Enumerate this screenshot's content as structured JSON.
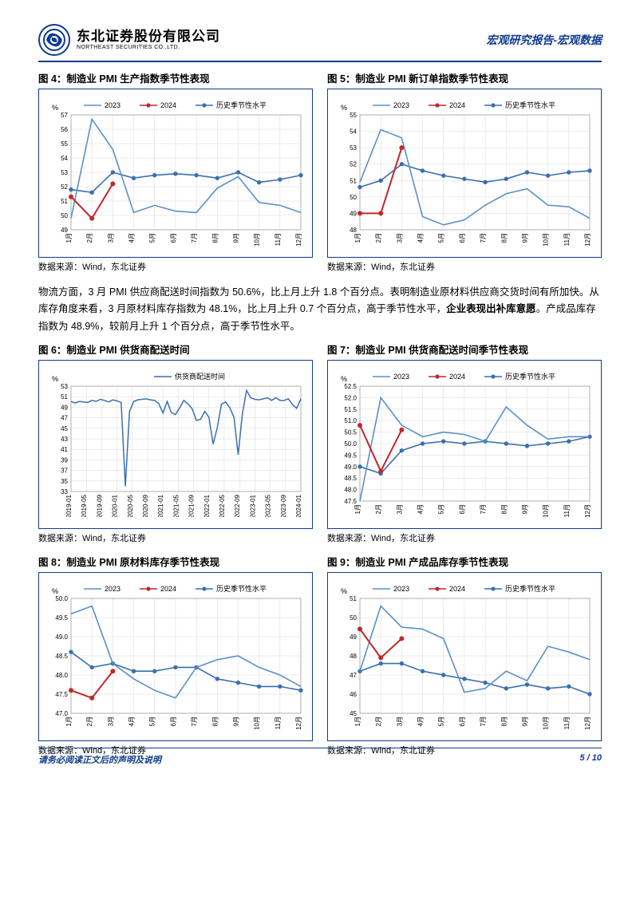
{
  "header": {
    "logo_cn": "东北证券股份有限公司",
    "logo_en": "NORTHEAST SECURITIES CO.,LTD.",
    "right": "宏观研究报告-宏观数据"
  },
  "body_text": "物流方面，3 月 PMI 供应商配送时间指数为 50.6%，比上月上升 1.8 个百分点。表明制造业原材料供应商交货时间有所加快。从库存角度来看，3 月原材料库存指数为 48.1%，比上月上升 0.7 个百分点，高于季节性水平，企业表现出补库意愿。产成品库存指数为 48.9%，较前月上升 1 个百分点，高于季节性水平。",
  "body_bold": "企业表现出补库意愿",
  "footer": {
    "left": "请务必阅读正文后的声明及说明",
    "right": "5 / 10"
  },
  "source_text": "数据来源：Wind，东北证券",
  "months": [
    "1月",
    "2月",
    "3月",
    "4月",
    "5月",
    "6月",
    "7月",
    "8月",
    "9月",
    "10月",
    "11月",
    "12月"
  ],
  "legend_3series": [
    "2023",
    "2024",
    "历史季节性水平"
  ],
  "legend_1series": [
    "供货商配送时间"
  ],
  "colors": {
    "s2023": "#5b8fc9",
    "s2024": "#c1272d",
    "hist": "#3a6fb0",
    "single": "#3a6fb0",
    "grid": "#d8d8d8",
    "axis": "#888888",
    "border": "#0f3b8c"
  },
  "fig4": {
    "title": "图 4：制造业 PMI 生产指数季节性表现",
    "ylabel": "%",
    "ylim": [
      49,
      57
    ],
    "ytick_step": 1,
    "s2023": [
      49.8,
      56.7,
      54.6,
      50.2,
      50.7,
      50.3,
      50.2,
      51.9,
      52.7,
      50.9,
      50.7,
      50.2
    ],
    "s2024": [
      51.3,
      49.8,
      52.2
    ],
    "hist": [
      51.8,
      51.6,
      53.0,
      52.6,
      52.8,
      52.9,
      52.8,
      52.6,
      53.0,
      52.3,
      52.5,
      52.8
    ]
  },
  "fig5": {
    "title": "图 5：制造业 PMI 新订单指数季节性表现",
    "ylabel": "%",
    "ylim": [
      48,
      55
    ],
    "ytick_step": 1,
    "s2023": [
      50.9,
      54.1,
      53.6,
      48.8,
      48.3,
      48.6,
      49.5,
      50.2,
      50.5,
      49.5,
      49.4,
      48.7
    ],
    "s2024": [
      49.0,
      49.0,
      53.0
    ],
    "hist": [
      50.6,
      51.0,
      52.0,
      51.6,
      51.3,
      51.1,
      50.9,
      51.1,
      51.5,
      51.3,
      51.5,
      51.6
    ]
  },
  "fig6": {
    "title": "图 6：制造业 PMI 供货商配送时间",
    "ylabel": "%",
    "ylim": [
      33,
      53
    ],
    "ytick_step": 2,
    "xlabels": [
      "2019-01",
      "2019-05",
      "2019-09",
      "2020-01",
      "2020-05",
      "2020-09",
      "2021-01",
      "2021-05",
      "2021-09",
      "2022-01",
      "2022-05",
      "2022-09",
      "2023-01",
      "2023-05",
      "2023-09",
      "2024-01"
    ],
    "data": [
      50.1,
      49.8,
      50.1,
      50.0,
      49.9,
      50.3,
      50.1,
      50.5,
      50.3,
      50.0,
      50.4,
      50.2,
      49.9,
      34.0,
      48.2,
      50.1,
      50.4,
      50.5,
      50.6,
      50.4,
      50.3,
      49.7,
      47.9,
      50.1,
      48.0,
      47.6,
      48.9,
      50.3,
      49.6,
      48.7,
      46.5,
      46.7,
      48.2,
      47.1,
      42.0,
      45.1,
      49.6,
      50.0,
      48.9,
      47.1,
      40.0,
      47.7,
      52.2,
      50.8,
      50.5,
      50.4,
      50.6,
      50.8,
      50.3,
      50.8,
      50.3,
      50.3,
      50.6,
      49.5,
      48.8,
      50.6
    ]
  },
  "fig7": {
    "title": "图 7：制造业 PMI 供货商配送时间季节性表现",
    "ylabel": "%",
    "ylim": [
      47.5,
      52.5
    ],
    "ytick_step": 0.5,
    "s2023": [
      47.5,
      52.0,
      50.8,
      50.3,
      50.5,
      50.4,
      50.1,
      51.6,
      50.8,
      50.2,
      50.3,
      50.3
    ],
    "s2024": [
      50.8,
      48.8,
      50.6
    ],
    "hist": [
      49.0,
      48.7,
      49.7,
      50.0,
      50.1,
      50.0,
      50.1,
      50.0,
      49.9,
      50.0,
      50.1,
      50.3
    ]
  },
  "fig8": {
    "title": "图 8：制造业 PMI 原材料库存季节性表现",
    "ylabel": "%",
    "ylim": [
      47.0,
      50.0
    ],
    "ytick_step": 0.5,
    "s2023": [
      49.6,
      49.8,
      48.3,
      47.9,
      47.6,
      47.4,
      48.2,
      48.4,
      48.5,
      48.2,
      48.0,
      47.7
    ],
    "s2024": [
      47.6,
      47.4,
      48.1
    ],
    "hist": [
      48.6,
      48.2,
      48.3,
      48.1,
      48.1,
      48.2,
      48.2,
      47.9,
      47.8,
      47.7,
      47.7,
      47.6
    ]
  },
  "fig9": {
    "title": "图 9：制造业 PMI 产成品库存季节性表现",
    "ylabel": "%",
    "ylim": [
      45,
      51
    ],
    "ytick_step": 1,
    "s2023": [
      47.2,
      50.6,
      49.5,
      49.4,
      48.9,
      46.1,
      46.3,
      47.2,
      46.7,
      48.5,
      48.2,
      47.8
    ],
    "s2024": [
      49.4,
      47.9,
      48.9
    ],
    "hist": [
      47.2,
      47.6,
      47.6,
      47.2,
      47.0,
      46.8,
      46.6,
      46.3,
      46.5,
      46.3,
      46.4,
      46.0
    ]
  }
}
